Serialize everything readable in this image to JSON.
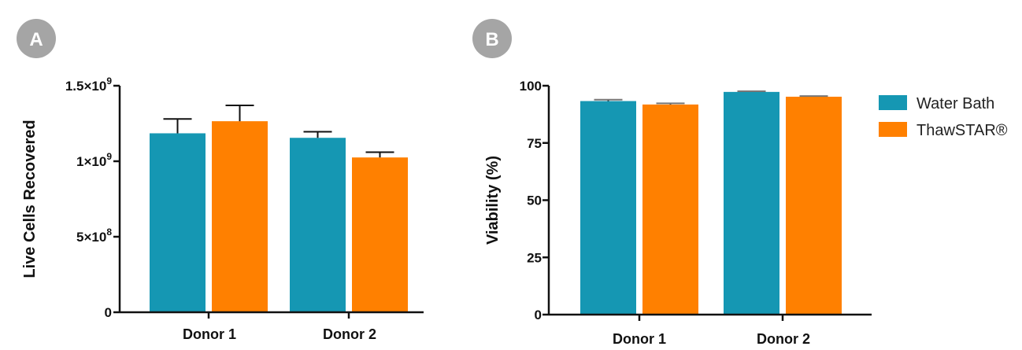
{
  "colors": {
    "water_bath": "#1597B3",
    "thawstar": "#FF8000",
    "badge": "#A5A5A5",
    "axis": "#111111"
  },
  "legend": [
    {
      "label": "Water Bath",
      "color": "#1597B3"
    },
    {
      "label": "ThawSTAR®",
      "color": "#FF8000"
    }
  ],
  "chart_data": [
    {
      "panel": "A",
      "type": "bar",
      "ylabel": "Live Cells Recovered",
      "categories": [
        "Donor 1",
        "Donor 2"
      ],
      "ylim": [
        0,
        1500000000
      ],
      "yticks": [
        {
          "value": 0,
          "base": "0",
          "exp": ""
        },
        {
          "value": 500000000,
          "base": "5×10",
          "exp": "8"
        },
        {
          "value": 1000000000,
          "base": "1×10",
          "exp": "9"
        },
        {
          "value": 1500000000,
          "base": "1.5×10",
          "exp": "9"
        }
      ],
      "series": [
        {
          "name": "Water Bath",
          "values": [
            1185000000,
            1155000000
          ],
          "errors": [
            95000000,
            40000000
          ]
        },
        {
          "name": "ThawSTAR®",
          "values": [
            1265000000,
            1025000000
          ],
          "errors": [
            105000000,
            35000000
          ]
        }
      ]
    },
    {
      "panel": "B",
      "type": "bar",
      "ylabel": "Viability (%)",
      "categories": [
        "Donor 1",
        "Donor 2"
      ],
      "ylim": [
        0,
        100
      ],
      "yticks": [
        {
          "value": 0,
          "base": "0",
          "exp": ""
        },
        {
          "value": 25,
          "base": "25",
          "exp": ""
        },
        {
          "value": 50,
          "base": "50",
          "exp": ""
        },
        {
          "value": 75,
          "base": "75",
          "exp": ""
        },
        {
          "value": 100,
          "base": "100",
          "exp": ""
        }
      ],
      "series": [
        {
          "name": "Water Bath",
          "values": [
            93.3,
            97.3
          ],
          "errors": [
            0.6,
            0.3
          ]
        },
        {
          "name": "ThawSTAR®",
          "values": [
            91.8,
            95.2
          ],
          "errors": [
            0.5,
            0.3
          ]
        }
      ]
    }
  ]
}
